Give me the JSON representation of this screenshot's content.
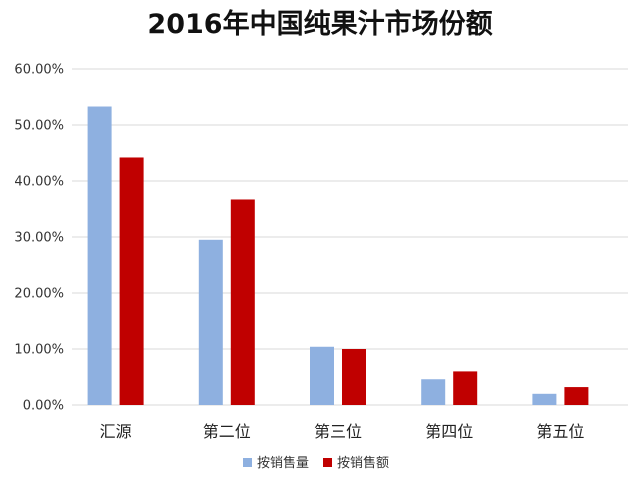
{
  "chart_data": {
    "type": "bar",
    "title": "2016年中国纯果汁市场份额",
    "xlabel": "",
    "ylabel": "",
    "categories": [
      "汇源",
      "第二位",
      "第三位",
      "第四位",
      "第五位"
    ],
    "series": [
      {
        "name": "按销售量",
        "color": "#8eb0e0",
        "values": [
          0.533,
          0.295,
          0.104,
          0.046,
          0.02
        ]
      },
      {
        "name": "按销售额",
        "color": "#c00000",
        "values": [
          0.442,
          0.367,
          0.1,
          0.06,
          0.032
        ]
      }
    ],
    "ylim": [
      0,
      0.6
    ],
    "yticks": [
      {
        "value": 0.0,
        "label": "0.00%"
      },
      {
        "value": 0.1,
        "label": "10.00%"
      },
      {
        "value": 0.2,
        "label": "20.00%"
      },
      {
        "value": 0.3,
        "label": "30.00%"
      },
      {
        "value": 0.4,
        "label": "40.00%"
      },
      {
        "value": 0.5,
        "label": "50.00%"
      },
      {
        "value": 0.6,
        "label": "60.00%"
      }
    ],
    "grid": true,
    "legend_position": "bottom"
  }
}
